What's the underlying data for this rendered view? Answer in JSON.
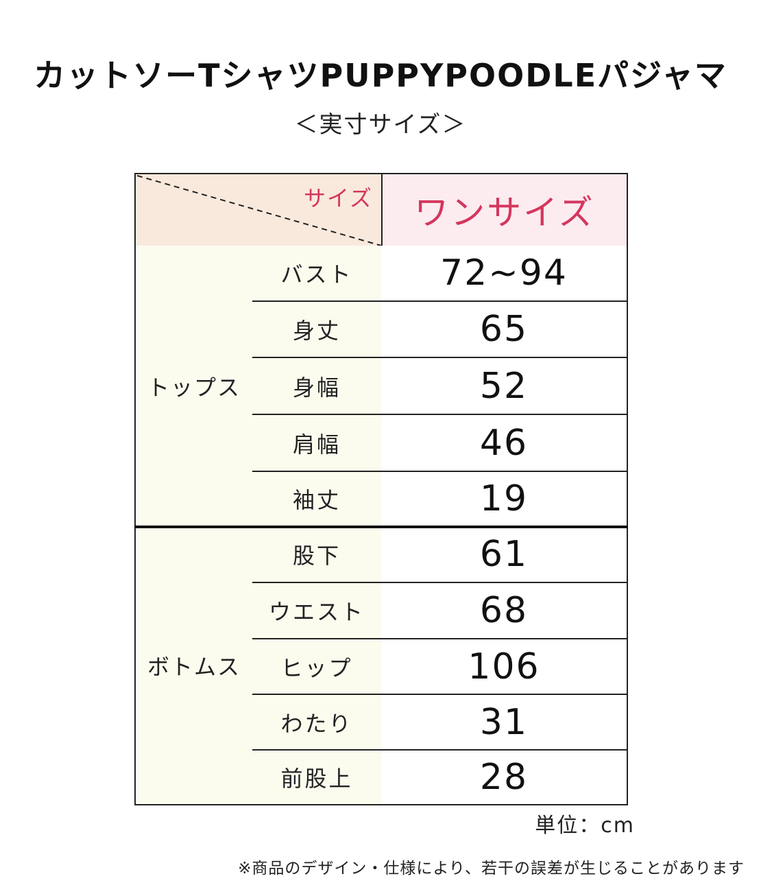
{
  "title": "カットソーTシャツPUPPYPOODLEパジャマ",
  "subtitle": "＜実寸サイズ＞",
  "table": {
    "corner_label": "サイズ",
    "size_header": "ワンサイズ",
    "groups": [
      {
        "label": "トップス",
        "rows": [
          {
            "item": "バスト",
            "value": "72~94"
          },
          {
            "item": "身丈",
            "value": "65"
          },
          {
            "item": "身幅",
            "value": "52"
          },
          {
            "item": "肩幅",
            "value": "46"
          },
          {
            "item": "袖丈",
            "value": "19"
          }
        ]
      },
      {
        "label": "ボトムス",
        "rows": [
          {
            "item": "股下",
            "value": "61"
          },
          {
            "item": "ウエスト",
            "value": "68"
          },
          {
            "item": "ヒップ",
            "value": "106"
          },
          {
            "item": "わたり",
            "value": "31"
          },
          {
            "item": "前股上",
            "value": "28"
          }
        ]
      }
    ]
  },
  "unit": "単位：cm",
  "note": "※商品のデザイン・仕様により、若干の誤差が生じることがあります",
  "colors": {
    "accent_pink": "#d4365f",
    "corner_bg": "#f9e9dc",
    "size_header_bg": "#fcecef",
    "label_bg": "#fbfbee"
  }
}
